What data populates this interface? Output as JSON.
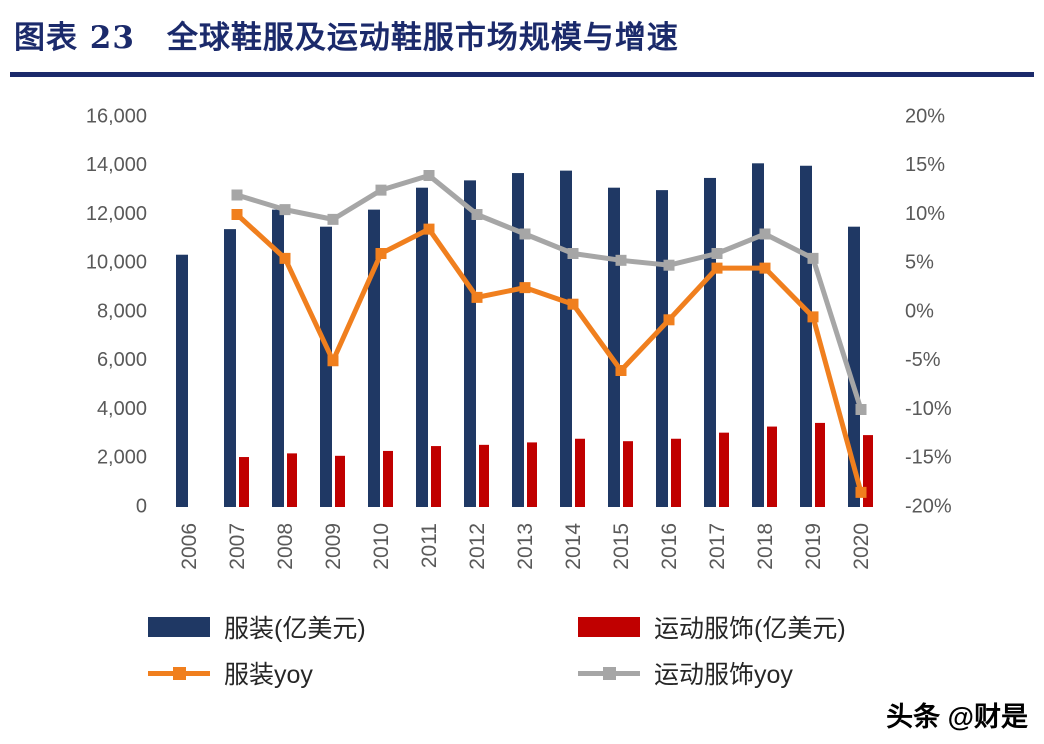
{
  "header": {
    "title": "图表 23　全球鞋服及运动鞋服市场规模与增速"
  },
  "watermark": "头条 @财是",
  "chart_data": {
    "type": "combo-bar-line",
    "title": "全球鞋服及运动鞋服市场规模与增速",
    "categories": [
      "2006",
      "2007",
      "2008",
      "2009",
      "2010",
      "2011",
      "2012",
      "2013",
      "2014",
      "2015",
      "2016",
      "2017",
      "2018",
      "2019",
      "2020"
    ],
    "series": [
      {
        "name": "服装(亿美元)",
        "type": "bar",
        "axis": "left",
        "color": "#1f3864",
        "values": [
          10350,
          11400,
          12200,
          11500,
          12200,
          13100,
          13400,
          13700,
          13800,
          13100,
          13000,
          13500,
          14100,
          14000,
          11500
        ]
      },
      {
        "name": "运动服饰(亿美元)",
        "type": "bar",
        "axis": "left",
        "color": "#c00000",
        "values": [
          null,
          2050,
          2200,
          2100,
          2300,
          2500,
          2550,
          2650,
          2800,
          2700,
          2800,
          3050,
          3300,
          3450,
          2950
        ]
      },
      {
        "name": "服装yoy",
        "type": "line",
        "axis": "right",
        "color": "#f07f1e",
        "values": [
          null,
          10.0,
          5.5,
          -5.0,
          6.0,
          8.5,
          1.5,
          2.5,
          0.8,
          -6.0,
          -0.8,
          4.5,
          4.5,
          -0.5,
          -18.5
        ]
      },
      {
        "name": "运动服饰yoy",
        "type": "line",
        "axis": "right",
        "color": "#a6a6a6",
        "values": [
          null,
          12.0,
          10.5,
          9.5,
          12.5,
          14.0,
          10.0,
          8.0,
          6.0,
          5.3,
          4.8,
          6.0,
          8.0,
          5.5,
          -10.0
        ]
      }
    ],
    "left_axis": {
      "min": 0,
      "max": 16000,
      "step": 2000,
      "tick_labels": [
        "16,000",
        "14,000",
        "12,000",
        "10,000",
        "8,000",
        "6,000",
        "4,000",
        "2,000",
        "0"
      ]
    },
    "right_axis": {
      "min": -20,
      "max": 20,
      "step": 5,
      "tick_labels": [
        "20%",
        "15%",
        "10%",
        "5%",
        "0%",
        "-5%",
        "-10%",
        "-15%",
        "-20%"
      ]
    },
    "grid": false,
    "legend_position": "bottom"
  }
}
